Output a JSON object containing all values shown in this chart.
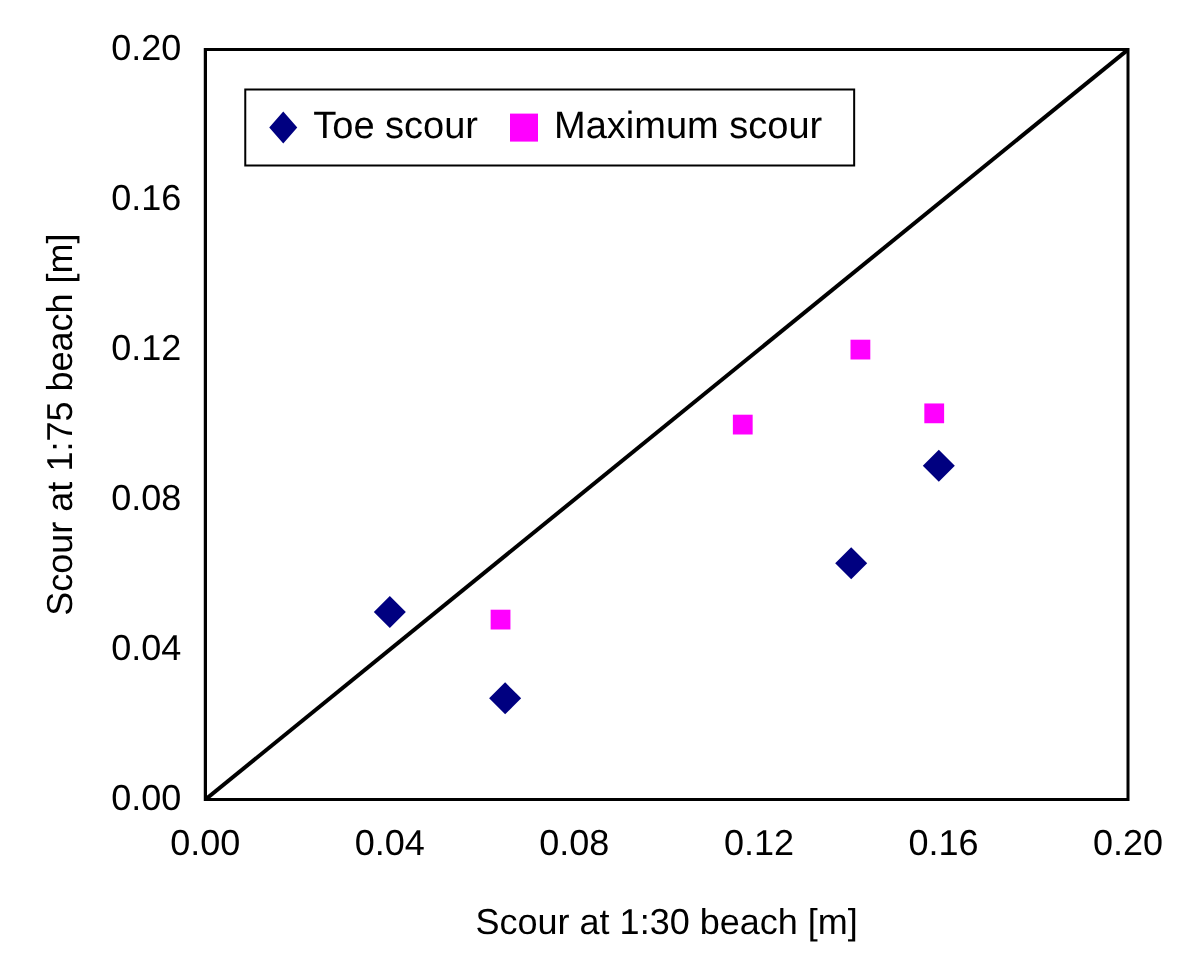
{
  "chart_data": {
    "type": "scatter",
    "xlabel": "Scour at 1:30 beach [m]",
    "ylabel": "Scour at 1:75 beach [m]",
    "xlim": [
      0,
      0.2
    ],
    "xticks": [
      {
        "value": 0,
        "label": "0.00"
      },
      {
        "value": 0.04,
        "label": "0.04"
      },
      {
        "value": 0.08,
        "label": "0.08"
      },
      {
        "value": 0.12,
        "label": "0.12"
      },
      {
        "value": 0.16,
        "label": "0.16"
      },
      {
        "value": 0.2,
        "label": "0.20"
      }
    ],
    "ylim": [
      0,
      0.2
    ],
    "yticks": [
      {
        "value": 0,
        "label": "0.00"
      },
      {
        "value": 0.04,
        "label": "0.04"
      },
      {
        "value": 0.08,
        "label": "0.08"
      },
      {
        "value": 0.12,
        "label": "0.12"
      },
      {
        "value": 0.16,
        "label": "0.16"
      },
      {
        "value": 0.2,
        "label": "0.20"
      }
    ],
    "grid": false,
    "legend": "top left",
    "series": [
      {
        "name": "Toe scour",
        "color": "#000080",
        "marker": "diamond",
        "x": [
          0.04,
          0.065,
          0.14,
          0.159
        ],
        "values": [
          0.05,
          0.027,
          0.063,
          0.089
        ]
      },
      {
        "name": "Maximum scour",
        "color": "#ff00ff",
        "marker": "square",
        "x": [
          0.064,
          0.1165,
          0.142,
          0.158
        ],
        "values": [
          0.048,
          0.1,
          0.12,
          0.103
        ]
      },
      {
        "type": "line",
        "color": "#000000",
        "marker": "none",
        "x": [
          0,
          0.2
        ],
        "values": [
          0,
          0.2
        ]
      }
    ]
  }
}
